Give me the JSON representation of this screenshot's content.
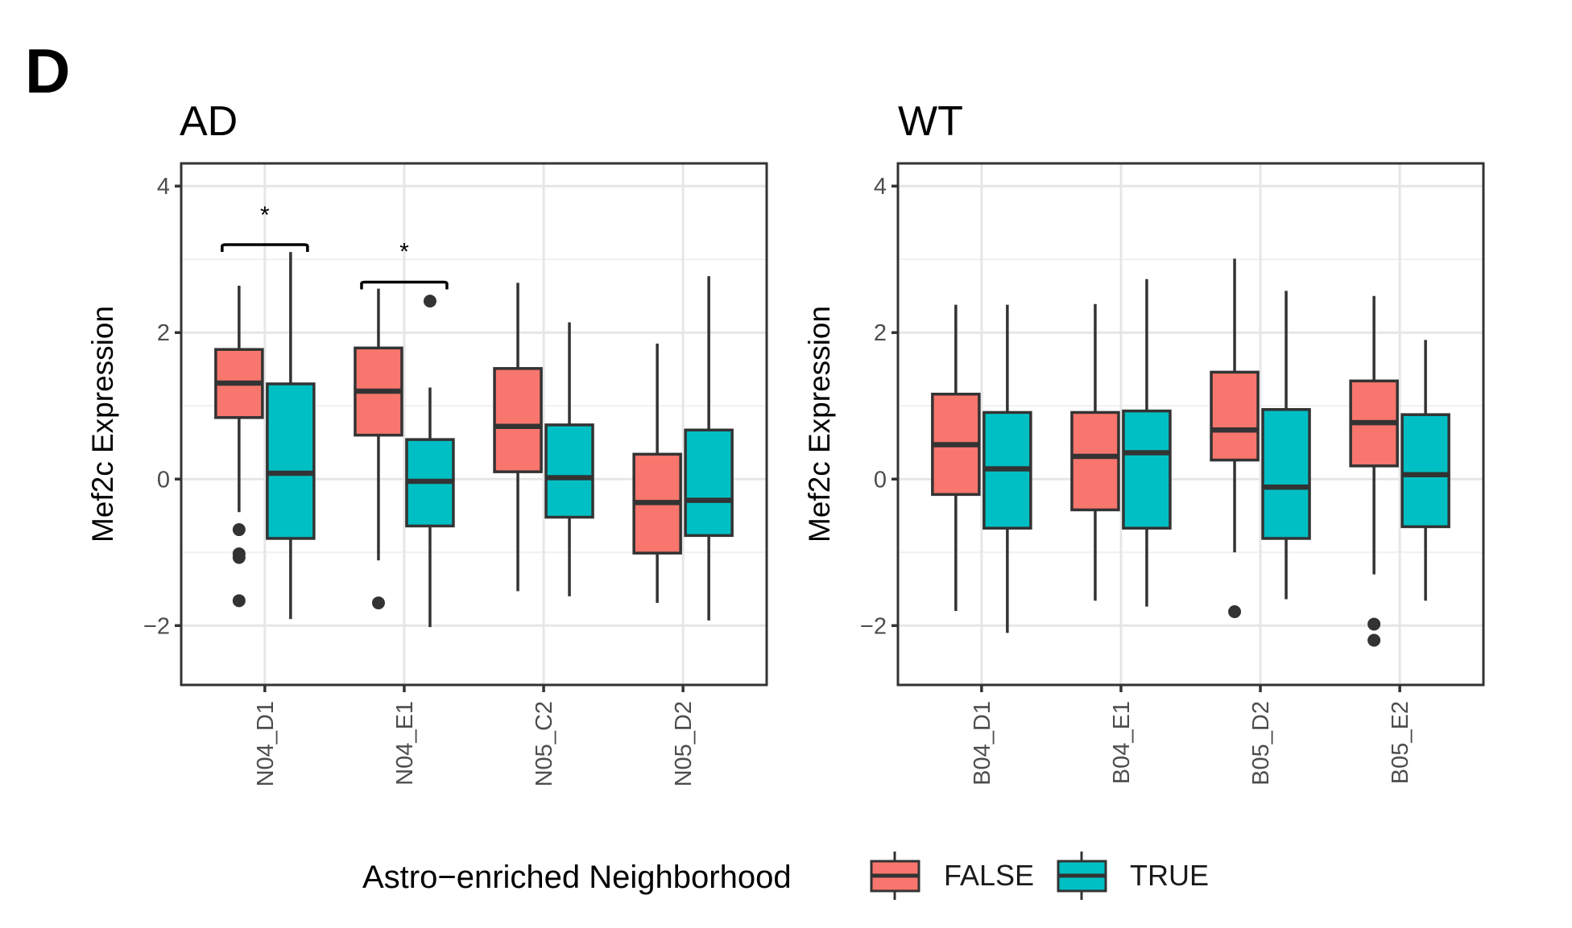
{
  "figure": {
    "panel_letter": "D"
  },
  "chart_data": [
    {
      "type": "box",
      "title": "AD",
      "xlabel": "",
      "ylabel": "Mef2c Expression",
      "ylim": [
        -2.81,
        4.31
      ],
      "yticks": [
        -2,
        0,
        2,
        4
      ],
      "ytick_labels": [
        "−2",
        "0",
        "2",
        "4"
      ],
      "grid": true,
      "categories": [
        "N04_D1",
        "N04_E1",
        "N05_C2",
        "N05_D2"
      ],
      "series": [
        {
          "name": "FALSE",
          "color": "#F8766D",
          "boxes": [
            {
              "whisker_low": -0.45,
              "q1": 0.84,
              "median": 1.31,
              "q3": 1.77,
              "whisker_high": 2.64,
              "outliers": [
                -0.69,
                -1.02,
                -1.07,
                -1.66
              ]
            },
            {
              "whisker_low": -1.11,
              "q1": 0.6,
              "median": 1.2,
              "q3": 1.79,
              "whisker_high": 2.6,
              "outliers": [
                -1.69
              ]
            },
            {
              "whisker_low": -1.53,
              "q1": 0.1,
              "median": 0.72,
              "q3": 1.51,
              "whisker_high": 2.68,
              "outliers": []
            },
            {
              "whisker_low": -1.69,
              "q1": -1.01,
              "median": -0.32,
              "q3": 0.34,
              "whisker_high": 1.85,
              "outliers": []
            }
          ]
        },
        {
          "name": "TRUE",
          "color": "#00BFC4",
          "boxes": [
            {
              "whisker_low": -1.91,
              "q1": -0.81,
              "median": 0.08,
              "q3": 1.3,
              "whisker_high": 3.1,
              "outliers": []
            },
            {
              "whisker_low": -2.02,
              "q1": -0.64,
              "median": -0.03,
              "q3": 0.54,
              "whisker_high": 1.25,
              "outliers": [
                2.43
              ]
            },
            {
              "whisker_low": -1.6,
              "q1": -0.52,
              "median": 0.02,
              "q3": 0.74,
              "whisker_high": 2.14,
              "outliers": []
            },
            {
              "whisker_low": -1.93,
              "q1": -0.77,
              "median": -0.29,
              "q3": 0.67,
              "whisker_high": 2.77,
              "outliers": []
            }
          ]
        }
      ],
      "annotations": [
        {
          "category": "N04_D1",
          "label": "*",
          "bracket_y": 3.2,
          "text_y": 3.65
        },
        {
          "category": "N04_E1",
          "label": "*",
          "bracket_y": 2.69,
          "text_y": 3.15
        }
      ]
    },
    {
      "type": "box",
      "title": "WT",
      "xlabel": "",
      "ylabel": "Mef2c Expression",
      "ylim": [
        -2.81,
        4.31
      ],
      "yticks": [
        -2,
        0,
        2,
        4
      ],
      "ytick_labels": [
        "−2",
        "0",
        "2",
        "4"
      ],
      "grid": true,
      "categories": [
        "B04_D1",
        "B04_E1",
        "B05_D2",
        "B05_E2"
      ],
      "series": [
        {
          "name": "FALSE",
          "color": "#F8766D",
          "boxes": [
            {
              "whisker_low": -1.8,
              "q1": -0.21,
              "median": 0.47,
              "q3": 1.16,
              "whisker_high": 2.38,
              "outliers": []
            },
            {
              "whisker_low": -1.66,
              "q1": -0.42,
              "median": 0.31,
              "q3": 0.91,
              "whisker_high": 2.39,
              "outliers": []
            },
            {
              "whisker_low": -1.0,
              "q1": 0.26,
              "median": 0.67,
              "q3": 1.46,
              "whisker_high": 3.01,
              "outliers": [
                -1.81
              ]
            },
            {
              "whisker_low": -1.3,
              "q1": 0.18,
              "median": 0.77,
              "q3": 1.34,
              "whisker_high": 2.5,
              "outliers": [
                -1.98,
                -2.2
              ]
            }
          ]
        },
        {
          "name": "TRUE",
          "color": "#00BFC4",
          "boxes": [
            {
              "whisker_low": -2.1,
              "q1": -0.67,
              "median": 0.14,
              "q3": 0.91,
              "whisker_high": 2.38,
              "outliers": []
            },
            {
              "whisker_low": -1.74,
              "q1": -0.67,
              "median": 0.36,
              "q3": 0.93,
              "whisker_high": 2.73,
              "outliers": []
            },
            {
              "whisker_low": -1.64,
              "q1": -0.81,
              "median": -0.11,
              "q3": 0.95,
              "whisker_high": 2.57,
              "outliers": []
            },
            {
              "whisker_low": -1.66,
              "q1": -0.65,
              "median": 0.06,
              "q3": 0.88,
              "whisker_high": 1.9,
              "outliers": []
            }
          ]
        }
      ],
      "annotations": []
    }
  ],
  "legend": {
    "title": "Astro−enriched Neighborhood",
    "position": "bottom",
    "entries": [
      {
        "label": "FALSE",
        "color": "#F8766D"
      },
      {
        "label": "TRUE",
        "color": "#00BFC4"
      }
    ]
  }
}
